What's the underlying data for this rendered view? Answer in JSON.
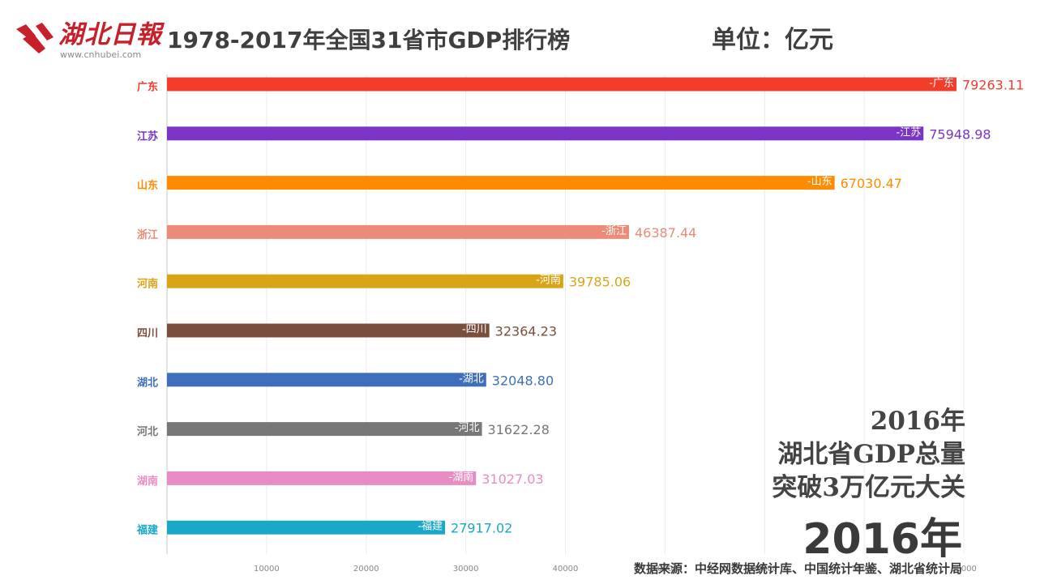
{
  "header": {
    "logo_text": "湖北日報",
    "logo_url": "www.cnhubei.com",
    "title": "1978-2017年全国31省市GDP排行榜",
    "unit": "单位：亿元"
  },
  "annotation": {
    "line1": "2016年",
    "line2": "湖北省GDP总量",
    "line3": "突破3万亿元大关"
  },
  "current_year": "2016年",
  "source": "数据来源：中经网数据统计库、中国统计年鉴、湖北省统计局",
  "colors": {
    "logo_red": "#c8202a",
    "axis": "#c8c8c8",
    "text_dark": "#3f3f3f"
  },
  "chart_data": {
    "type": "bar",
    "orientation": "horizontal",
    "title": "1978-2017年全国31省市GDP排行榜",
    "unit": "亿元",
    "year": "2016",
    "xlim": [
      0,
      80000
    ],
    "xticks": [
      10000,
      20000,
      30000,
      40000,
      50000,
      60000,
      70000,
      80000
    ],
    "categories": [
      "广东",
      "江苏",
      "山东",
      "浙江",
      "河南",
      "四川",
      "湖北",
      "河北",
      "湖南",
      "福建"
    ],
    "values": [
      79263.11,
      75948.98,
      67030.47,
      46387.44,
      39785.06,
      32364.23,
      32048.8,
      31622.28,
      31027.03,
      27917.02
    ],
    "value_labels": [
      "79263.11",
      "75948.98",
      "67030.47",
      "46387.44",
      "39785.06",
      "32364.23",
      "32048.80",
      "31622.28",
      "31027.03",
      "27917.02"
    ],
    "bar_labels": [
      "-广东",
      "-江苏",
      "-山东",
      "-浙江",
      "-河南",
      "-四川",
      "-湖北",
      "-河北",
      "-湖南",
      "-福建"
    ],
    "colors": [
      "#f43c2a",
      "#7a35c6",
      "#ff8c00",
      "#ee8a78",
      "#d9a418",
      "#7a4e3c",
      "#3f6fba",
      "#777777",
      "#e88cc4",
      "#1aa8c8"
    ]
  }
}
